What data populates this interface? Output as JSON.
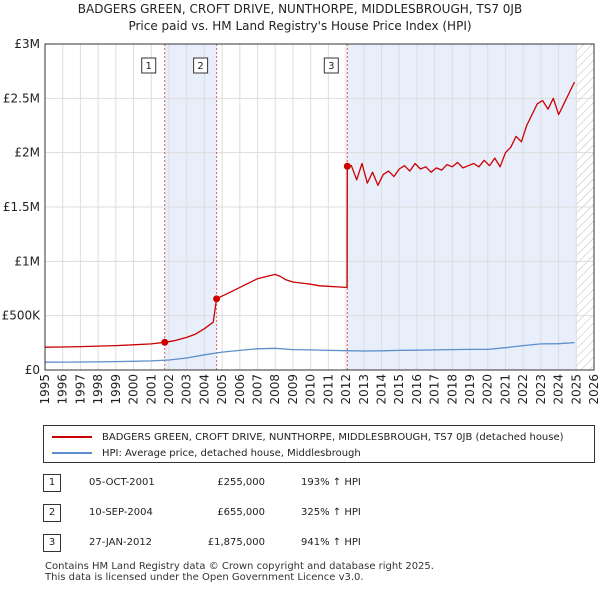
{
  "title": "BADGERS GREEN, CROFT DRIVE, NUNTHORPE, MIDDLESBROUGH, TS7 0JB",
  "subtitle": "Price paid vs. HM Land Registry's House Price Index (HPI)",
  "colors": {
    "property": "#cc0000",
    "hpi": "#5b8fc9",
    "shade": "#e8eefa",
    "grid": "#dddddd",
    "vline": "#e06060"
  },
  "chart_data": {
    "type": "line",
    "xlim": [
      1995,
      2026
    ],
    "ylim": [
      0,
      3000000
    ],
    "y_ticks": [
      {
        "value": 0,
        "label": "£0"
      },
      {
        "value": 500000,
        "label": "£500K"
      },
      {
        "value": 1000000,
        "label": "£1M"
      },
      {
        "value": 1500000,
        "label": "£1.5M"
      },
      {
        "value": 2000000,
        "label": "£2M"
      },
      {
        "value": 2500000,
        "label": "£2.5M"
      },
      {
        "value": 3000000,
        "label": "£3M"
      }
    ],
    "x_ticks": [
      "1995",
      "1996",
      "1997",
      "1998",
      "1999",
      "2000",
      "2001",
      "2002",
      "2003",
      "2004",
      "2005",
      "2006",
      "2007",
      "2008",
      "2009",
      "2010",
      "2011",
      "2012",
      "2013",
      "2014",
      "2015",
      "2016",
      "2017",
      "2018",
      "2019",
      "2020",
      "2021",
      "2022",
      "2023",
      "2024",
      "2025",
      "2026"
    ],
    "shaded_ranges": [
      [
        2001.76,
        2004.69
      ],
      [
        2012.07,
        2025.0
      ]
    ],
    "hatched_from": 2025.0,
    "markers": [
      {
        "label": "1",
        "x": 2001.76,
        "y": 255000
      },
      {
        "label": "2",
        "x": 2004.69,
        "y": 655000
      },
      {
        "label": "3",
        "x": 2012.07,
        "y": 1875000
      }
    ],
    "series": [
      {
        "name": "BADGERS GREEN, CROFT DRIVE, NUNTHORPE, MIDDLESBROUGH, TS7 0JB (detached house)",
        "x": [
          1995.0,
          1996.0,
          1997.0,
          1998.0,
          1999.0,
          2000.0,
          2001.0,
          2001.76,
          2002.3,
          2003.0,
          2003.5,
          2004.0,
          2004.5,
          2004.69,
          2005.0,
          2005.5,
          2006.0,
          2006.5,
          2007.0,
          2007.5,
          2008.0,
          2008.3,
          2008.6,
          2009.0,
          2009.5,
          2010.0,
          2010.5,
          2011.0,
          2011.5,
          2012.0,
          2012.06,
          2012.07,
          2012.3,
          2012.6,
          2012.9,
          2013.2,
          2013.5,
          2013.8,
          2014.1,
          2014.4,
          2014.7,
          2015.0,
          2015.3,
          2015.6,
          2015.9,
          2016.2,
          2016.5,
          2016.8,
          2017.1,
          2017.4,
          2017.7,
          2018.0,
          2018.3,
          2018.6,
          2018.9,
          2019.2,
          2019.5,
          2019.8,
          2020.1,
          2020.4,
          2020.7,
          2021.0,
          2021.3,
          2021.6,
          2021.9,
          2022.2,
          2022.5,
          2022.8,
          2023.1,
          2023.4,
          2023.7,
          2024.0,
          2024.3,
          2024.6,
          2024.9
        ],
        "y": [
          210000,
          212000,
          215000,
          220000,
          225000,
          232000,
          240000,
          255000,
          270000,
          300000,
          330000,
          380000,
          440000,
          655000,
          680000,
          720000,
          760000,
          800000,
          840000,
          860000,
          880000,
          860000,
          830000,
          810000,
          800000,
          790000,
          775000,
          770000,
          765000,
          760000,
          760000,
          1875000,
          1880000,
          1750000,
          1900000,
          1720000,
          1820000,
          1700000,
          1800000,
          1830000,
          1780000,
          1850000,
          1880000,
          1830000,
          1900000,
          1850000,
          1870000,
          1820000,
          1860000,
          1840000,
          1890000,
          1870000,
          1910000,
          1860000,
          1880000,
          1900000,
          1870000,
          1930000,
          1880000,
          1950000,
          1870000,
          2000000,
          2050000,
          2150000,
          2100000,
          2250000,
          2350000,
          2450000,
          2480000,
          2400000,
          2500000,
          2350000,
          2450000,
          2550000,
          2650000
        ]
      },
      {
        "name": "HPI: Average price, detached house, Middlesbrough",
        "x": [
          1995.0,
          1996.0,
          1997.0,
          1998.0,
          1999.0,
          2000.0,
          2001.0,
          2002.0,
          2003.0,
          2004.0,
          2005.0,
          2006.0,
          2007.0,
          2008.0,
          2009.0,
          2010.0,
          2011.0,
          2012.0,
          2013.0,
          2014.0,
          2015.0,
          2016.0,
          2017.0,
          2018.0,
          2019.0,
          2020.0,
          2021.0,
          2022.0,
          2023.0,
          2024.0,
          2024.9
        ],
        "y": [
          72000,
          73000,
          74000,
          75000,
          77000,
          80000,
          84000,
          92000,
          110000,
          140000,
          165000,
          180000,
          195000,
          200000,
          188000,
          185000,
          180000,
          178000,
          175000,
          177000,
          180000,
          182000,
          185000,
          188000,
          190000,
          190000,
          205000,
          225000,
          240000,
          242000,
          252000
        ]
      }
    ]
  },
  "legend": [
    {
      "label": "BADGERS GREEN, CROFT DRIVE, NUNTHORPE, MIDDLESBROUGH, TS7 0JB (detached house)"
    },
    {
      "label": "HPI: Average price, detached house, Middlesbrough"
    }
  ],
  "sales": [
    {
      "num": "1",
      "date": "05-OCT-2001",
      "price": "£255,000",
      "hpi": "193% ↑ HPI"
    },
    {
      "num": "2",
      "date": "10-SEP-2004",
      "price": "£655,000",
      "hpi": "325% ↑ HPI"
    },
    {
      "num": "3",
      "date": "27-JAN-2012",
      "price": "£1,875,000",
      "hpi": "941% ↑ HPI"
    }
  ],
  "footer": {
    "line1": "Contains HM Land Registry data © Crown copyright and database right 2025.",
    "line2": "This data is licensed under the Open Government Licence v3.0."
  }
}
